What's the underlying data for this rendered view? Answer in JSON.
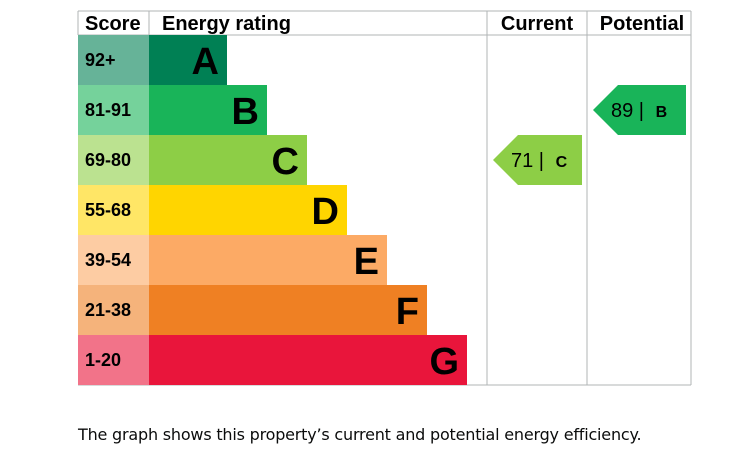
{
  "chart_data": {
    "type": "bar",
    "headers": {
      "score": "Score",
      "rating": "Energy rating",
      "current": "Current",
      "potential": "Potential"
    },
    "bands": [
      {
        "score": "92+",
        "letter": "A",
        "color": "#008054",
        "score_bg": "#66b398"
      },
      {
        "score": "81-91",
        "letter": "B",
        "color": "#19b459",
        "score_bg": "#75d29b"
      },
      {
        "score": "69-80",
        "letter": "C",
        "color": "#8dce46",
        "score_bg": "#bbe290"
      },
      {
        "score": "55-68",
        "letter": "D",
        "color": "#ffd500",
        "score_bg": "#ffe666"
      },
      {
        "score": "39-54",
        "letter": "E",
        "color": "#fcaa65",
        "score_bg": "#fdcca3"
      },
      {
        "score": "21-38",
        "letter": "F",
        "color": "#ef8023",
        "score_bg": "#f5b37b"
      },
      {
        "score": "1-20",
        "letter": "G",
        "color": "#e9153b",
        "score_bg": "#f27389"
      }
    ],
    "current": {
      "value": 71,
      "band": "C"
    },
    "potential": {
      "value": 89,
      "band": "B"
    }
  },
  "caption": "The graph shows this property’s current and potential energy efficiency."
}
